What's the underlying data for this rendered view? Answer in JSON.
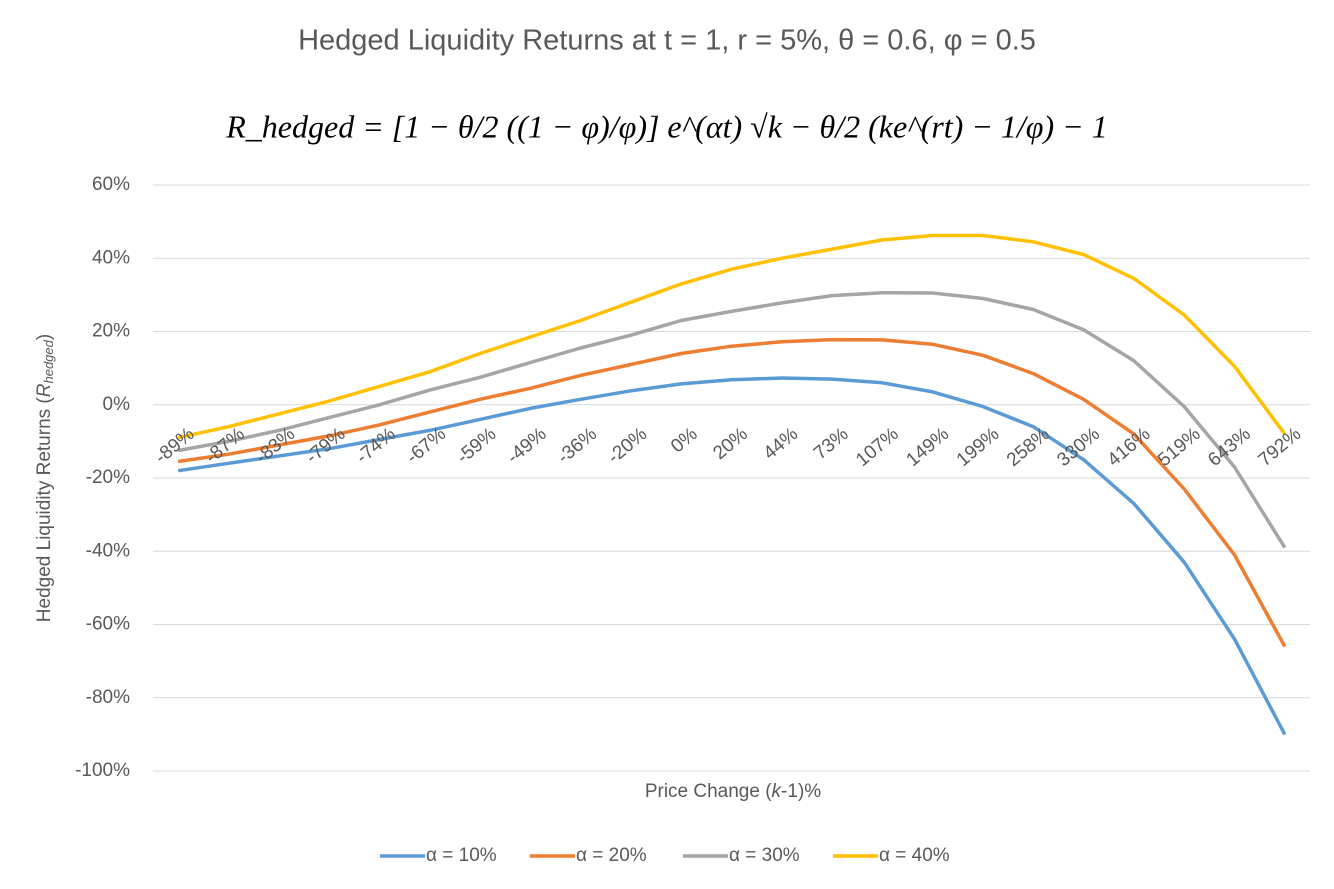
{
  "chart_data": {
    "type": "line",
    "title": "Hedged Liquidity Returns at t = 1, r = 5%, θ = 0.6, φ = 0.5",
    "formula": "R_hedged = [1 − θ/2 ((1 − φ)/φ)] e^(αt) √k − θ/2 (ke^(rt) − 1/φ) − 1",
    "x_label": [
      "Price Change (",
      "k",
      "-1)%"
    ],
    "y_label": [
      "Hedged Liquidity Returns (",
      "R",
      "hedged",
      ")"
    ],
    "categories": [
      "-89%",
      "-87%",
      "-83%",
      "-79%",
      "-74%",
      "-67%",
      "-59%",
      "-49%",
      "-36%",
      "-20%",
      "0%",
      "20%",
      "44%",
      "73%",
      "107%",
      "149%",
      "199%",
      "258%",
      "330%",
      "416%",
      "519%",
      "643%",
      "792%"
    ],
    "series": [
      {
        "name": "α = 10%",
        "color": "#5b9bd5",
        "values": [
          -18,
          -16,
          -14,
          -12,
          -9.5,
          -7,
          -4,
          -1,
          1.5,
          3.8,
          5.7,
          6.8,
          7.3,
          7,
          6,
          3.5,
          -0.5,
          -6,
          -15,
          -27,
          -43,
          -64,
          -90
        ]
      },
      {
        "name": "α = 20%",
        "color": "#ed7d31",
        "values": [
          -15.5,
          -13.5,
          -11,
          -8.5,
          -5.5,
          -2,
          1.5,
          4.5,
          8,
          11,
          14,
          16,
          17.2,
          17.8,
          17.7,
          16.5,
          13.5,
          8.5,
          1.5,
          -8,
          -23,
          -41,
          -66
        ]
      },
      {
        "name": "α = 30%",
        "color": "#a5a5a5",
        "values": [
          -12.5,
          -10,
          -7,
          -3.5,
          0,
          4,
          7.5,
          11.5,
          15.5,
          19,
          23,
          25.5,
          27.8,
          29.8,
          30.6,
          30.5,
          29,
          26,
          20.5,
          12,
          -0.5,
          -17,
          -39
        ]
      },
      {
        "name": "α = 40%",
        "color": "#ffc000",
        "values": [
          -9,
          -6,
          -2.5,
          1,
          5,
          9,
          14,
          18.5,
          23,
          28,
          33,
          37,
          40,
          42.5,
          45,
          46.2,
          46.2,
          44.5,
          41,
          34.5,
          24.5,
          10.5,
          -8
        ]
      }
    ],
    "ylim": [
      -100,
      60
    ],
    "yticks": [
      {
        "value": -100,
        "label": "-100%"
      },
      {
        "value": -80,
        "label": "-80%"
      },
      {
        "value": -60,
        "label": "-60%"
      },
      {
        "value": -40,
        "label": "-40%"
      },
      {
        "value": -20,
        "label": "-20%"
      },
      {
        "value": 0,
        "label": "0%"
      },
      {
        "value": 20,
        "label": "20%"
      },
      {
        "value": 40,
        "label": "40%"
      },
      {
        "value": 60,
        "label": "60%"
      }
    ],
    "grid": true,
    "legend": "bottom"
  }
}
